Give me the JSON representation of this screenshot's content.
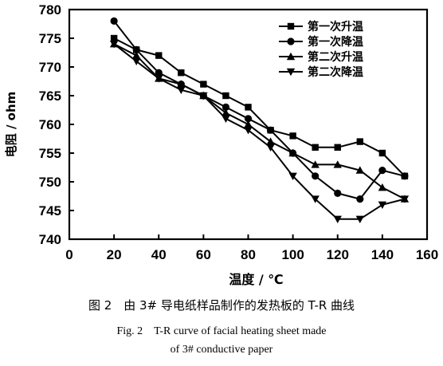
{
  "chart_data": {
    "type": "line",
    "xlabel": "温度 / ℃",
    "ylabel": "电阻 / ohm",
    "xlim": [
      0,
      160
    ],
    "ylim": [
      740,
      780
    ],
    "x_ticks": [
      0,
      20,
      40,
      60,
      80,
      100,
      120,
      140,
      160
    ],
    "y_ticks": [
      740,
      745,
      750,
      755,
      760,
      765,
      770,
      775,
      780
    ],
    "legend_position": "top-right",
    "grid": false,
    "series": [
      {
        "name": "第一次升温",
        "marker": "square",
        "x": [
          20,
          30,
          40,
          50,
          60,
          70,
          80,
          90,
          100,
          110,
          120,
          130,
          140,
          150
        ],
        "y": [
          775,
          773,
          772,
          769,
          767,
          765,
          763,
          759,
          758,
          756,
          756,
          757,
          755,
          751
        ]
      },
      {
        "name": "第一次降温",
        "marker": "circle",
        "x": [
          20,
          30,
          40,
          50,
          60,
          70,
          80,
          90,
          100,
          110,
          120,
          130,
          140,
          150
        ],
        "y": [
          778,
          773,
          769,
          767,
          765,
          763,
          761,
          759,
          755,
          751,
          748,
          747,
          752,
          751
        ]
      },
      {
        "name": "第二次升温",
        "marker": "triangle-up",
        "x": [
          20,
          30,
          40,
          50,
          60,
          70,
          80,
          90,
          100,
          110,
          120,
          130,
          140,
          150
        ],
        "y": [
          774,
          772,
          768,
          767,
          765,
          762,
          760,
          757,
          755,
          753,
          753,
          752,
          749,
          747
        ]
      },
      {
        "name": "第二次降温",
        "marker": "triangle-down",
        "x": [
          20,
          30,
          40,
          50,
          60,
          70,
          80,
          90,
          100,
          110,
          120,
          130,
          140,
          150
        ],
        "y": [
          774,
          771,
          768,
          766,
          765,
          761,
          759,
          756,
          751,
          747,
          743.5,
          743.5,
          746,
          747
        ]
      }
    ]
  },
  "caption": {
    "cn": "图 2　由 3# 导电纸样品制作的发热板的 T-R 曲线",
    "en_line1": "Fig. 2　T-R curve of facial heating sheet made",
    "en_line2": "of 3# conductive paper"
  }
}
